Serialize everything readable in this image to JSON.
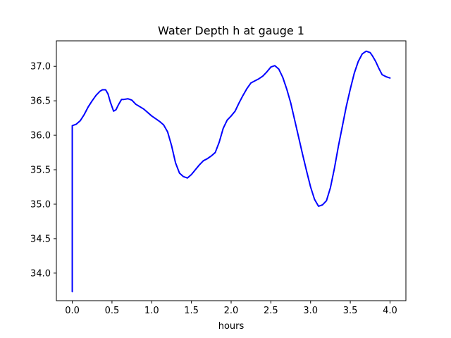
{
  "chart_data": {
    "type": "line",
    "title": "Water Depth h at gauge 1",
    "xlabel": "hours",
    "ylabel": "",
    "xlim": [
      -0.2,
      4.2
    ],
    "ylim": [
      33.6,
      37.37
    ],
    "xticks": [
      0.0,
      0.5,
      1.0,
      1.5,
      2.0,
      2.5,
      3.0,
      3.5,
      4.0
    ],
    "xtick_labels": [
      "0.0",
      "0.5",
      "1.0",
      "1.5",
      "2.0",
      "2.5",
      "3.0",
      "3.5",
      "4.0"
    ],
    "yticks": [
      34.0,
      34.5,
      35.0,
      35.5,
      36.0,
      36.5,
      37.0
    ],
    "ytick_labels": [
      "34.0",
      "34.5",
      "35.0",
      "35.5",
      "36.0",
      "36.5",
      "37.0"
    ],
    "grid": false,
    "series": [
      {
        "color": "#0000ff",
        "x": [
          0.0,
          0.0,
          0.05,
          0.1,
          0.15,
          0.2,
          0.25,
          0.3,
          0.35,
          0.38,
          0.42,
          0.45,
          0.48,
          0.52,
          0.55,
          0.58,
          0.62,
          0.65,
          0.7,
          0.75,
          0.8,
          0.9,
          1.0,
          1.05,
          1.1,
          1.15,
          1.2,
          1.25,
          1.3,
          1.35,
          1.4,
          1.45,
          1.5,
          1.55,
          1.6,
          1.65,
          1.7,
          1.75,
          1.8,
          1.85,
          1.9,
          1.95,
          2.0,
          2.05,
          2.1,
          2.15,
          2.2,
          2.25,
          2.3,
          2.35,
          2.4,
          2.45,
          2.5,
          2.55,
          2.6,
          2.65,
          2.7,
          2.75,
          2.8,
          2.85,
          2.9,
          2.95,
          3.0,
          3.05,
          3.1,
          3.15,
          3.2,
          3.25,
          3.3,
          3.35,
          3.4,
          3.45,
          3.5,
          3.55,
          3.6,
          3.65,
          3.7,
          3.75,
          3.78,
          3.82,
          3.86,
          3.9,
          3.95,
          4.0
        ],
        "y": [
          33.73,
          36.14,
          36.16,
          36.21,
          36.3,
          36.41,
          36.5,
          36.58,
          36.64,
          36.66,
          36.66,
          36.6,
          36.48,
          36.35,
          36.37,
          36.44,
          36.52,
          36.52,
          36.53,
          36.51,
          36.45,
          36.38,
          36.28,
          36.24,
          36.2,
          36.15,
          36.05,
          35.85,
          35.6,
          35.45,
          35.4,
          35.38,
          35.43,
          35.5,
          35.57,
          35.63,
          35.66,
          35.7,
          35.75,
          35.9,
          36.1,
          36.22,
          36.28,
          36.35,
          36.47,
          36.58,
          36.68,
          36.76,
          36.79,
          36.82,
          36.86,
          36.92,
          36.99,
          37.01,
          36.96,
          36.84,
          36.67,
          36.47,
          36.22,
          35.97,
          35.72,
          35.48,
          35.25,
          35.07,
          34.97,
          34.99,
          35.05,
          35.24,
          35.52,
          35.84,
          36.13,
          36.42,
          36.67,
          36.9,
          37.07,
          37.18,
          37.22,
          37.2,
          37.15,
          37.07,
          36.97,
          36.88,
          36.85,
          36.83
        ]
      }
    ]
  }
}
